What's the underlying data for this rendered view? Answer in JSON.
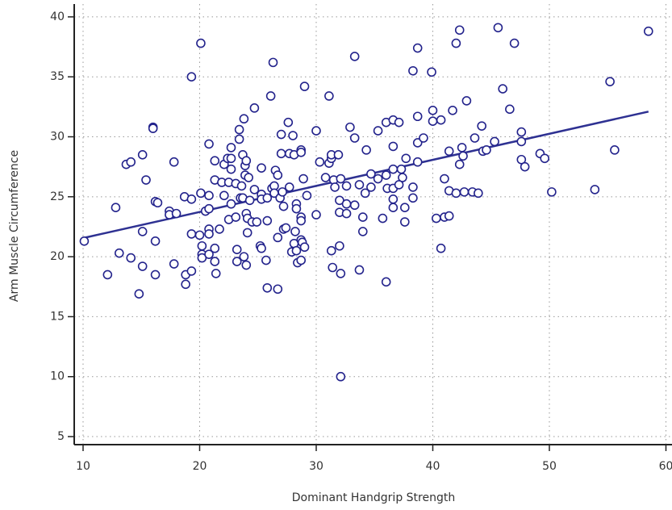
{
  "chart_data": {
    "type": "scatter",
    "x_label": "Dominant Handgrip Strength",
    "y_label": "Arm Muscle Circumference",
    "xlim": [
      9.24,
      60.52
    ],
    "ylim": [
      4.33,
      41.07
    ],
    "xticks": [
      10,
      20,
      30,
      40,
      50,
      60
    ],
    "yticks": [
      5,
      10,
      15,
      20,
      25,
      30,
      35,
      40
    ],
    "grid": true,
    "color": "#23238c",
    "x": [
      10.1,
      12.1,
      12.8,
      13.1,
      13.7,
      14.1,
      14.1,
      14.8,
      15.1,
      15.1,
      15.1,
      15.4,
      16.0,
      16.0,
      16.2,
      16.4,
      16.2,
      16.2,
      17.4,
      17.4,
      17.8,
      18.0,
      17.8,
      18.7,
      18.8,
      18.8,
      19.3,
      19.3,
      19.3,
      19.3,
      20.1,
      20.1,
      20.0,
      20.2,
      20.2,
      20.2,
      20.5,
      20.8,
      20.8,
      20.8,
      20.8,
      20.8,
      20.8,
      21.3,
      21.3,
      21.3,
      21.3,
      21.4,
      21.7,
      21.9,
      22.1,
      22.1,
      22.4,
      22.5,
      22.5,
      22.7,
      22.7,
      22.7,
      22.7,
      23.1,
      23.1,
      23.2,
      23.2,
      23.4,
      23.4,
      23.5,
      23.6,
      23.7,
      23.7,
      23.8,
      23.9,
      23.9,
      23.8,
      24.0,
      24.0,
      24.0,
      24.1,
      24.1,
      24.2,
      24.3,
      24.5,
      24.7,
      24.7,
      24.9,
      25.3,
      25.3,
      25.3,
      25.2,
      25.3,
      25.7,
      25.8,
      25.8,
      25.8,
      26.1,
      26.2,
      26.3,
      26.4,
      26.4,
      26.5,
      26.7,
      26.7,
      26.7,
      26.9,
      27.0,
      27.0,
      27.1,
      27.2,
      27.2,
      27.4,
      27.6,
      27.7,
      27.7,
      27.9,
      28.0,
      28.1,
      28.1,
      28.2,
      28.3,
      28.3,
      28.3,
      28.4,
      28.7,
      28.7,
      28.7,
      28.7,
      28.7,
      28.8,
      28.7,
      28.9,
      29.0,
      29.0,
      29.2,
      30.0,
      30.0,
      30.3,
      30.8,
      31.1,
      31.1,
      31.3,
      31.3,
      31.3,
      31.4,
      31.5,
      31.6,
      31.9,
      32.0,
      32.0,
      32.0,
      32.1,
      32.1,
      32.1,
      32.6,
      32.6,
      32.6,
      32.9,
      33.3,
      33.3,
      33.3,
      33.7,
      33.7,
      34.0,
      34.0,
      34.2,
      34.3,
      34.7,
      34.7,
      35.3,
      35.3,
      35.7,
      36.0,
      36.0,
      36.0,
      36.1,
      36.6,
      36.6,
      36.6,
      36.6,
      36.6,
      36.6,
      37.1,
      37.1,
      37.3,
      37.4,
      37.6,
      37.6,
      37.7,
      38.3,
      38.3,
      38.3,
      38.7,
      38.7,
      38.7,
      38.7,
      39.2,
      39.9,
      40.0,
      40.0,
      40.3,
      40.7,
      40.7,
      41.0,
      41.0,
      41.4,
      41.4,
      41.4,
      41.7,
      42.0,
      42.0,
      42.3,
      42.3,
      42.5,
      42.6,
      42.7,
      42.9,
      43.4,
      43.6,
      43.9,
      44.2,
      44.3,
      44.6,
      45.3,
      45.6,
      46.0,
      46.6,
      47.0,
      47.6,
      47.6,
      47.6,
      47.9,
      49.2,
      49.6,
      50.2,
      53.9,
      55.2,
      55.6,
      58.5
    ],
    "values": [
      21.3,
      18.5,
      24.1,
      20.3,
      27.7,
      27.9,
      19.9,
      16.9,
      28.5,
      22.1,
      19.2,
      26.4,
      30.8,
      30.7,
      24.6,
      24.5,
      21.3,
      18.5,
      23.8,
      23.5,
      27.9,
      23.6,
      19.4,
      25.0,
      18.5,
      17.7,
      35.0,
      24.8,
      21.9,
      18.8,
      37.8,
      25.3,
      21.8,
      20.9,
      20.2,
      19.9,
      23.8,
      29.4,
      25.1,
      24.0,
      22.3,
      21.9,
      20.2,
      28.0,
      26.4,
      20.7,
      19.6,
      18.6,
      22.3,
      26.2,
      27.7,
      25.1,
      28.2,
      26.2,
      23.1,
      29.1,
      28.2,
      27.3,
      24.4,
      26.1,
      23.3,
      20.6,
      19.6,
      30.6,
      29.8,
      24.9,
      25.9,
      28.5,
      24.9,
      20.0,
      27.6,
      26.8,
      31.5,
      23.6,
      19.3,
      28.0,
      22.0,
      23.2,
      26.6,
      24.7,
      22.9,
      25.6,
      32.4,
      22.9,
      27.4,
      25.2,
      24.8,
      20.9,
      20.7,
      19.7,
      17.4,
      23.0,
      24.9,
      33.4,
      25.7,
      36.2,
      25.9,
      25.3,
      27.2,
      17.3,
      21.6,
      26.8,
      24.9,
      30.2,
      28.6,
      25.4,
      24.2,
      22.3,
      22.4,
      31.2,
      25.8,
      28.6,
      20.4,
      30.1,
      28.5,
      21.1,
      22.1,
      20.5,
      24.4,
      24.0,
      19.5,
      28.9,
      28.7,
      23.3,
      23.0,
      21.4,
      21.2,
      19.7,
      26.5,
      34.2,
      20.8,
      25.1,
      30.5,
      23.5,
      27.9,
      26.6,
      33.4,
      27.8,
      28.2,
      28.5,
      20.5,
      19.1,
      26.4,
      25.8,
      28.5,
      24.7,
      23.7,
      20.9,
      18.6,
      10.0,
      26.5,
      25.9,
      23.6,
      24.4,
      30.8,
      24.3,
      36.7,
      29.9,
      18.9,
      26.0,
      22.1,
      23.3,
      25.3,
      28.9,
      26.9,
      25.8,
      26.5,
      30.5,
      23.2,
      26.8,
      17.9,
      31.2,
      25.7,
      31.4,
      29.2,
      27.3,
      24.8,
      24.1,
      25.7,
      31.2,
      26.0,
      27.3,
      26.6,
      24.1,
      22.9,
      28.2,
      35.5,
      25.8,
      24.9,
      37.4,
      31.7,
      27.9,
      29.5,
      29.9,
      35.4,
      32.2,
      31.3,
      23.2,
      31.4,
      20.7,
      26.5,
      23.3,
      28.8,
      25.5,
      23.4,
      32.2,
      25.3,
      37.8,
      38.9,
      27.7,
      29.1,
      28.4,
      25.4,
      33.0,
      25.4,
      29.9,
      25.3,
      30.9,
      28.8,
      28.9,
      29.6,
      39.1,
      34.0,
      32.3,
      37.8,
      30.4,
      29.6,
      28.1,
      27.5,
      28.6,
      28.2,
      25.4,
      25.6,
      34.6,
      28.9,
      38.8
    ],
    "fit_line": {
      "x": [
        10.2,
        58.5
      ],
      "values": [
        21.6,
        32.1
      ],
      "color": "#2e3192"
    }
  }
}
